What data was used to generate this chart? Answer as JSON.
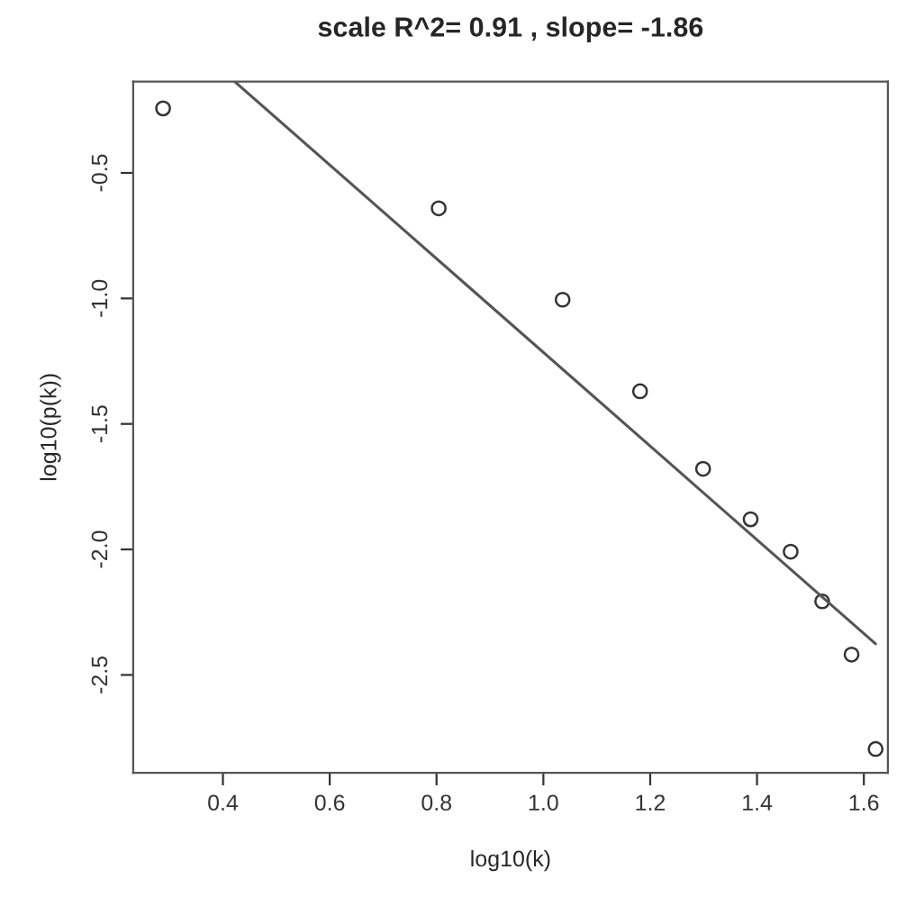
{
  "chart_data": {
    "type": "scatter",
    "title": "scale R^2= 0.91 , slope= -1.86",
    "xlabel": "log10(k)",
    "ylabel": "log10(p(k))",
    "series": [
      {
        "color": "#333333",
        "marker": "circle",
        "x": [
          0.288,
          0.804,
          1.036,
          1.181,
          1.299,
          1.388,
          1.463,
          1.522,
          1.577,
          1.622
        ],
        "values": [
          -0.243,
          -0.641,
          -1.005,
          -1.37,
          -1.679,
          -1.88,
          -2.009,
          -2.207,
          -2.419,
          -2.795
        ]
      },
      {
        "type": "line",
        "color": "#555555",
        "x": [
          0.422,
          1.622
        ],
        "values": [
          -0.136,
          -2.376
        ]
      }
    ],
    "xlim": [
      0.232,
      1.645
    ],
    "ylim": [
      -2.89,
      -0.136
    ],
    "xticks": [
      0.4,
      0.6,
      0.8,
      {
        "value": 1,
        "label": "1.0"
      },
      1.2,
      1.4,
      1.6
    ],
    "yticks": [
      -0.5,
      {
        "value": -1,
        "label": "-1.0"
      },
      -1.5,
      {
        "value": -2,
        "label": "-2.0"
      },
      -2.5
    ],
    "grid": false
  }
}
